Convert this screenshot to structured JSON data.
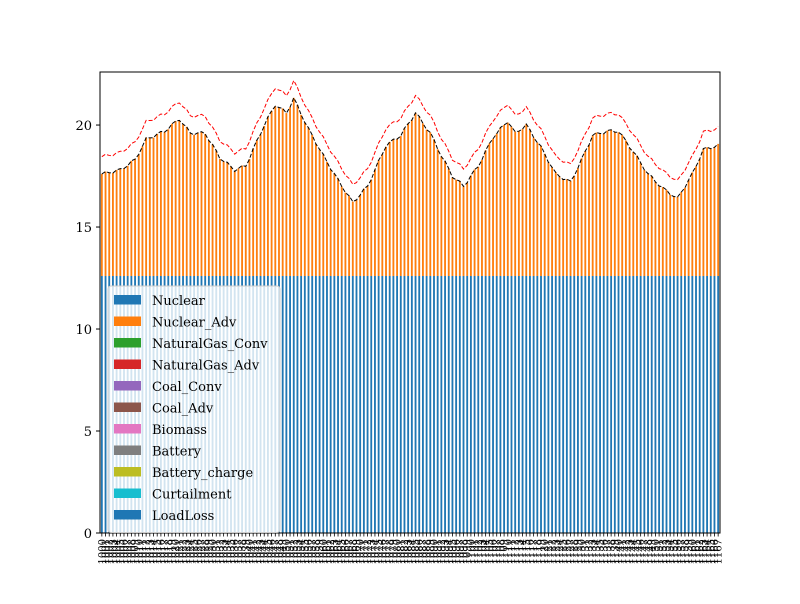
{
  "chart_data": {
    "type": "bar",
    "stacked": true,
    "x": [
      1000,
      1001,
      1002,
      1003,
      1004,
      1005,
      1006,
      1007,
      1008,
      1009,
      1010,
      1011,
      1012,
      1013,
      1014,
      1015,
      1016,
      1017,
      1018,
      1019,
      1020,
      1021,
      1022,
      1023,
      1024,
      1025,
      1026,
      1027,
      1028,
      1029,
      1030,
      1031,
      1032,
      1033,
      1034,
      1035,
      1036,
      1037,
      1038,
      1039,
      1040,
      1041,
      1042,
      1043,
      1044,
      1045,
      1046,
      1047,
      1048,
      1049,
      1050,
      1051,
      1052,
      1053,
      1054,
      1055,
      1056,
      1057,
      1058,
      1059,
      1060,
      1061,
      1062,
      1063,
      1064,
      1065,
      1066,
      1067,
      1068,
      1069,
      1070,
      1071,
      1072,
      1073,
      1074,
      1075,
      1076,
      1077,
      1078,
      1079,
      1080,
      1081,
      1082,
      1083,
      1084,
      1085,
      1086,
      1087,
      1088,
      1089,
      1090,
      1091,
      1092,
      1093,
      1094,
      1095,
      1096,
      1097,
      1098,
      1099,
      1100,
      1101,
      1102,
      1103,
      1104,
      1105,
      1106,
      1107,
      1108,
      1109,
      1110,
      1111,
      1112,
      1113,
      1114,
      1115,
      1116,
      1117,
      1118,
      1119,
      1120,
      1121,
      1122,
      1123,
      1124,
      1125,
      1126,
      1127,
      1128,
      1129,
      1130,
      1131,
      1132,
      1133,
      1134,
      1135,
      1136,
      1137,
      1138,
      1139,
      1140,
      1141,
      1142,
      1143,
      1144,
      1145,
      1146,
      1147,
      1148,
      1149,
      1150,
      1151,
      1152,
      1153,
      1154,
      1155,
      1156,
      1157,
      1158,
      1159,
      1160,
      1161,
      1162,
      1163,
      1164,
      1165,
      1166,
      1167
    ],
    "series": [
      {
        "name": "Nuclear",
        "constant": 12.6,
        "color": "#1f77b4"
      },
      {
        "name": "Nuclear_Adv",
        "color": "#ff7f0e"
      },
      {
        "name": "NaturalGas_Conv",
        "color": "#2ca02c"
      },
      {
        "name": "NaturalGas_Adv",
        "color": "#d62728"
      },
      {
        "name": "Coal_Conv",
        "color": "#9467bd"
      },
      {
        "name": "Coal_Adv",
        "color": "#8c564b"
      },
      {
        "name": "Biomass",
        "color": "#e377c2"
      },
      {
        "name": "Battery",
        "color": "#7f7f7f"
      },
      {
        "name": "Battery_charge",
        "color": "#bcbd22"
      },
      {
        "name": "Curtailment",
        "color": "#17becf"
      },
      {
        "name": "LoadLoss",
        "color": "#1f77b4"
      }
    ],
    "load_keypoints": [
      [
        0,
        17.6
      ],
      [
        5,
        17.8
      ],
      [
        9,
        18.3
      ],
      [
        12,
        19.3
      ],
      [
        17,
        19.7
      ],
      [
        21,
        20.3
      ],
      [
        24,
        19.6
      ],
      [
        28,
        19.6
      ],
      [
        32,
        18.4
      ],
      [
        36,
        17.8
      ],
      [
        39,
        18.0
      ],
      [
        44,
        20.0
      ],
      [
        47,
        21.0
      ],
      [
        50,
        20.6
      ],
      [
        52,
        21.3
      ],
      [
        56,
        19.8
      ],
      [
        60,
        18.5
      ],
      [
        64,
        17.3
      ],
      [
        68,
        16.2
      ],
      [
        72,
        17.0
      ],
      [
        77,
        19.0
      ],
      [
        81,
        19.5
      ],
      [
        85,
        20.6
      ],
      [
        89,
        19.6
      ],
      [
        92,
        18.5
      ],
      [
        95,
        17.5
      ],
      [
        98,
        17.0
      ],
      [
        102,
        18.0
      ],
      [
        106,
        19.4
      ],
      [
        110,
        20.2
      ],
      [
        112,
        19.6
      ],
      [
        115,
        20.0
      ],
      [
        119,
        18.9
      ],
      [
        123,
        17.6
      ],
      [
        127,
        17.2
      ],
      [
        130,
        18.3
      ],
      [
        133,
        19.5
      ],
      [
        137,
        19.7
      ],
      [
        140,
        19.7
      ],
      [
        144,
        18.7
      ],
      [
        148,
        17.6
      ],
      [
        152,
        16.9
      ],
      [
        156,
        16.4
      ],
      [
        160,
        17.6
      ],
      [
        163,
        18.8
      ],
      [
        167,
        19.0
      ]
    ],
    "reserve_offset": 0.85,
    "ylim": [
      0,
      22.6
    ],
    "yticks": [
      0,
      5,
      10,
      15,
      20
    ],
    "legend_position": "lower-left",
    "grid": false
  }
}
